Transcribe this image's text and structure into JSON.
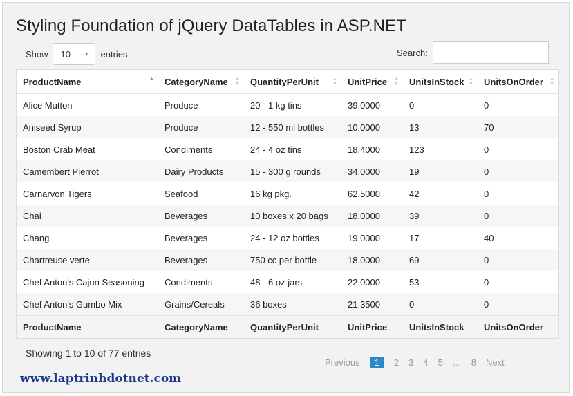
{
  "title": "Styling Foundation of jQuery DataTables in ASP.NET",
  "length": {
    "show_label": "Show",
    "selected": "10",
    "entries_label": "entries"
  },
  "search": {
    "label": "Search:",
    "value": ""
  },
  "columns": [
    "ProductName",
    "CategoryName",
    "QuantityPerUnit",
    "UnitPrice",
    "UnitsInStock",
    "UnitsOnOrder"
  ],
  "rows": [
    [
      "Alice Mutton",
      "Produce",
      "20 - 1 kg tins",
      "39.0000",
      "0",
      "0"
    ],
    [
      "Aniseed Syrup",
      "Produce",
      "12 - 550 ml bottles",
      "10.0000",
      "13",
      "70"
    ],
    [
      "Boston Crab Meat",
      "Condiments",
      "24 - 4 oz tins",
      "18.4000",
      "123",
      "0"
    ],
    [
      "Camembert Pierrot",
      "Dairy Products",
      "15 - 300 g rounds",
      "34.0000",
      "19",
      "0"
    ],
    [
      "Carnarvon Tigers",
      "Seafood",
      "16 kg pkg.",
      "62.5000",
      "42",
      "0"
    ],
    [
      "Chai",
      "Beverages",
      "10 boxes x 20 bags",
      "18.0000",
      "39",
      "0"
    ],
    [
      "Chang",
      "Beverages",
      "24 - 12 oz bottles",
      "19.0000",
      "17",
      "40"
    ],
    [
      "Chartreuse verte",
      "Beverages",
      "750 cc per bottle",
      "18.0000",
      "69",
      "0"
    ],
    [
      "Chef Anton's Cajun Seasoning",
      "Condiments",
      "48 - 6 oz jars",
      "22.0000",
      "53",
      "0"
    ],
    [
      "Chef Anton's Gumbo Mix",
      "Grains/Cereals",
      "36 boxes",
      "21.3500",
      "0",
      "0"
    ]
  ],
  "info": "Showing 1 to 10 of 77 entries",
  "pager": {
    "previous": "Previous",
    "pages": [
      "1",
      "2",
      "3",
      "4",
      "5",
      "…",
      "8"
    ],
    "current": "1",
    "next": "Next"
  },
  "site": "www.laptrinhdotnet.com",
  "sort": {
    "active_column": "ProductName",
    "direction": "asc",
    "icon": "sort-icon"
  },
  "colors": {
    "accent": "#2a8ac8",
    "site_text": "#1d3a8a"
  }
}
